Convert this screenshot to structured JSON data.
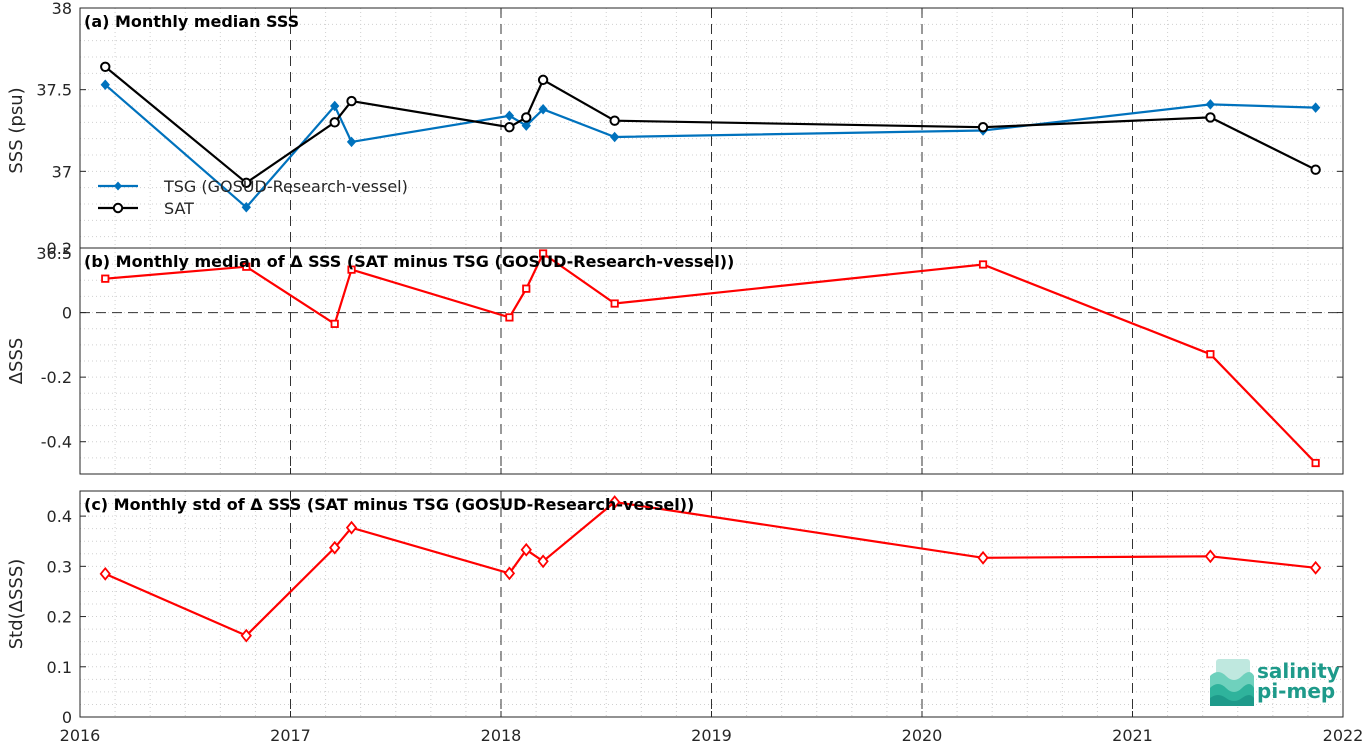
{
  "chart_data": [
    {
      "type": "line",
      "title": "(a) Monthly median SSS",
      "ylabel": "SSS (psu)",
      "xlim": [
        2016,
        2022
      ],
      "ylim": [
        36.5,
        38
      ],
      "yticks": [
        "36.5",
        "37",
        "37.5",
        "38"
      ],
      "xticks": [
        "2016",
        "2017",
        "2018",
        "2019",
        "2020",
        "2021",
        "2022"
      ],
      "grid": "dotted minor grid",
      "legend": "left",
      "series": [
        {
          "name": "TSG (GOSUD-Research-vessel)",
          "color": "#0072bd",
          "marker": "diamond",
          "x": [
            2016.12,
            2016.79,
            2017.21,
            2017.29,
            2018.04,
            2018.12,
            2018.2,
            2018.54,
            2020.29,
            2021.37,
            2021.87
          ],
          "y": [
            37.53,
            36.78,
            37.4,
            37.18,
            37.34,
            37.28,
            37.38,
            37.21,
            37.25,
            37.41,
            37.39
          ]
        },
        {
          "name": "SAT",
          "color": "#000000",
          "marker": "circle",
          "x": [
            2016.12,
            2016.79,
            2017.21,
            2017.29,
            2018.04,
            2018.12,
            2018.2,
            2018.54,
            2020.29,
            2021.37,
            2021.87
          ],
          "y": [
            37.64,
            36.93,
            37.3,
            37.43,
            37.27,
            37.33,
            37.56,
            37.31,
            37.27,
            37.33,
            37.01
          ]
        }
      ]
    },
    {
      "type": "line",
      "title": "(b) Monthly median of Δ SSS (SAT minus TSG (GOSUD-Research-vessel))",
      "ylabel": "ΔSSS",
      "xlim": [
        2016,
        2022
      ],
      "ylim": [
        -0.5,
        0.2
      ],
      "yticks": [
        "-0.4",
        "-0.2",
        "0",
        "0.2"
      ],
      "xticks": [
        "2016",
        "2017",
        "2018",
        "2019",
        "2020",
        "2021",
        "2022"
      ],
      "grid": "dotted minor grid, dashed zero line",
      "series": [
        {
          "color": "#ff0000",
          "marker": "square",
          "x": [
            2016.12,
            2016.79,
            2017.21,
            2017.29,
            2018.04,
            2018.12,
            2018.2,
            2018.54,
            2020.29,
            2021.37,
            2021.87
          ],
          "y": [
            0.105,
            0.142,
            -0.035,
            0.133,
            -0.015,
            0.074,
            0.183,
            0.028,
            0.149,
            -0.129,
            -0.466
          ]
        }
      ]
    },
    {
      "type": "line",
      "title": "(c) Monthly std of Δ SSS (SAT minus TSG (GOSUD-Research-vessel))",
      "ylabel": "Std(ΔSSS)",
      "xlim": [
        2016,
        2022
      ],
      "ylim": [
        0,
        0.45
      ],
      "yticks": [
        "0",
        "0.1",
        "0.2",
        "0.3",
        "0.4"
      ],
      "xticks": [
        "2016",
        "2017",
        "2018",
        "2019",
        "2020",
        "2021",
        "2022"
      ],
      "grid": "dotted minor grid",
      "series": [
        {
          "color": "#ff0000",
          "marker": "diamond-open",
          "x": [
            2016.12,
            2016.79,
            2017.21,
            2017.29,
            2018.04,
            2018.12,
            2018.2,
            2018.54,
            2020.29,
            2021.37,
            2021.87
          ],
          "y": [
            0.285,
            0.162,
            0.337,
            0.377,
            0.286,
            0.333,
            0.31,
            0.428,
            0.317,
            0.32,
            0.297
          ]
        }
      ]
    }
  ],
  "year_lines": [
    2017,
    2018,
    2019,
    2020,
    2021
  ],
  "logo": {
    "line1": "salinity",
    "line2": "pi-mep",
    "color": "#1e9a8a"
  }
}
